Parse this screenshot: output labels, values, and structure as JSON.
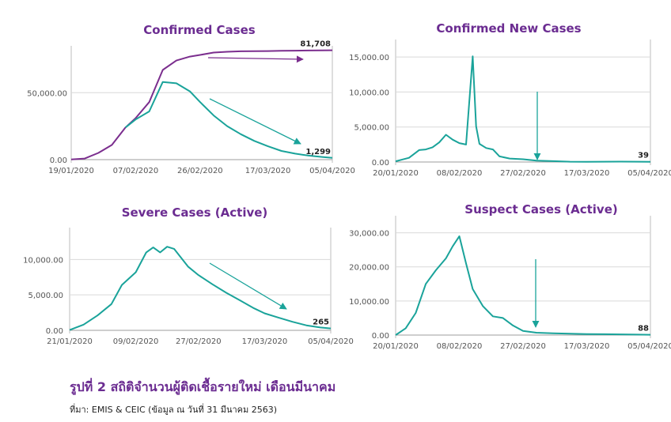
{
  "colors": {
    "purple": "#7b2e8e",
    "teal": "#1aa39a",
    "title": "#6b2c91",
    "axis": "#555555",
    "grid": "#d9d9d9"
  },
  "chart_data": [
    {
      "type": "line",
      "title": "Confirmed Cases",
      "x": [
        "19/01/2020",
        "23/01/2020",
        "27/01/2020",
        "31/01/2020",
        "04/02/2020",
        "07/02/2020",
        "11/02/2020",
        "15/02/2020",
        "19/02/2020",
        "23/02/2020",
        "26/02/2020",
        "01/03/2020",
        "05/03/2020",
        "09/03/2020",
        "13/03/2020",
        "17/03/2020",
        "21/03/2020",
        "25/03/2020",
        "29/03/2020",
        "02/04/2020",
        "05/04/2020"
      ],
      "series": [
        {
          "name": "",
          "color": "purple",
          "values": [
            100,
            800,
            5000,
            11000,
            24000,
            31000,
            43000,
            67000,
            74000,
            77000,
            78200,
            80000,
            80600,
            80900,
            81000,
            81100,
            81300,
            81400,
            81500,
            81600,
            81708
          ]
        },
        {
          "name": "",
          "color": "teal",
          "values": [
            null,
            null,
            null,
            null,
            24000,
            30000,
            36000,
            58000,
            57000,
            51000,
            43000,
            33000,
            25000,
            19000,
            14000,
            10000,
            6500,
            4500,
            3000,
            2000,
            1299
          ]
        }
      ],
      "yticks": [
        0,
        50000
      ],
      "ytick_labels": [
        "0.00",
        "50,000.00"
      ],
      "xtick_labels": [
        "19/01/2020",
        "07/02/2020",
        "26/02/2020",
        "17/03/2020",
        "05/04/2020"
      ],
      "xticks": [
        "19/01/2020",
        "07/02/2020",
        "26/02/2020",
        "17/03/2020",
        "05/04/2020"
      ],
      "ylim": [
        0,
        85000
      ],
      "end_labels": [
        "81,708",
        "1,299"
      ],
      "grid": "horizontal"
    },
    {
      "type": "line",
      "title": "Confirmed New Cases",
      "x": [
        "20/01/2020",
        "24/01/2020",
        "27/01/2020",
        "29/01/2020",
        "31/01/2020",
        "02/02/2020",
        "04/02/2020",
        "06/02/2020",
        "08/02/2020",
        "10/02/2020",
        "12/02/2020",
        "13/02/2020",
        "14/02/2020",
        "16/02/2020",
        "18/02/2020",
        "20/02/2020",
        "23/02/2020",
        "27/02/2020",
        "02/03/2020",
        "07/03/2020",
        "12/03/2020",
        "17/03/2020",
        "22/03/2020",
        "27/03/2020",
        "01/04/2020",
        "05/04/2020"
      ],
      "series": [
        {
          "name": "",
          "color": "teal",
          "values": [
            100,
            600,
            1700,
            1800,
            2100,
            2800,
            3900,
            3200,
            2700,
            2500,
            15100,
            5100,
            2600,
            2000,
            1800,
            800,
            500,
            400,
            200,
            120,
            40,
            30,
            50,
            60,
            50,
            39
          ]
        }
      ],
      "yticks": [
        0,
        5000,
        10000,
        15000
      ],
      "ytick_labels": [
        "0.00",
        "5,000.00",
        "10,000.00",
        "15,000.00"
      ],
      "xtick_labels": [
        "20/01/2020",
        "08/02/2020",
        "27/02/2020",
        "17/03/2020",
        "05/04/2020"
      ],
      "xticks": [
        "20/01/2020",
        "08/02/2020",
        "27/02/2020",
        "17/03/2020",
        "05/04/2020"
      ],
      "ylim": [
        0,
        17500
      ],
      "end_labels": [
        "39"
      ],
      "grid": "horizontal"
    },
    {
      "type": "line",
      "title": "Severe Cases (Active)",
      "x": [
        "21/01/2020",
        "25/01/2020",
        "29/01/2020",
        "02/02/2020",
        "05/02/2020",
        "09/02/2020",
        "12/02/2020",
        "14/02/2020",
        "16/02/2020",
        "18/02/2020",
        "20/02/2020",
        "24/02/2020",
        "27/02/2020",
        "02/03/2020",
        "06/03/2020",
        "10/03/2020",
        "14/03/2020",
        "17/03/2020",
        "21/03/2020",
        "25/03/2020",
        "29/03/2020",
        "02/04/2020",
        "05/04/2020"
      ],
      "series": [
        {
          "name": "",
          "color": "teal",
          "values": [
            50,
            800,
            2100,
            3700,
            6400,
            8200,
            11000,
            11700,
            11000,
            11800,
            11500,
            9000,
            7800,
            6500,
            5300,
            4200,
            3100,
            2400,
            1800,
            1200,
            700,
            400,
            265
          ]
        }
      ],
      "yticks": [
        0,
        5000,
        10000
      ],
      "ytick_labels": [
        "0.00",
        "5,000.00",
        "10,000.00"
      ],
      "xtick_labels": [
        "21/01/2020",
        "09/02/2020",
        "27/02/2020",
        "17/03/2020",
        "05/04/2020"
      ],
      "xticks": [
        "21/01/2020",
        "09/02/2020",
        "27/02/2020",
        "17/03/2020",
        "05/04/2020"
      ],
      "ylim": [
        0,
        14500
      ],
      "end_labels": [
        "265"
      ],
      "grid": "horizontal"
    },
    {
      "type": "line",
      "title": "Suspect Cases (Active)",
      "x": [
        "20/01/2020",
        "23/01/2020",
        "26/01/2020",
        "29/01/2020",
        "01/02/2020",
        "04/02/2020",
        "06/02/2020",
        "08/02/2020",
        "10/02/2020",
        "12/02/2020",
        "15/02/2020",
        "18/02/2020",
        "21/02/2020",
        "24/02/2020",
        "27/02/2020",
        "02/03/2020",
        "07/03/2020",
        "12/03/2020",
        "17/03/2020",
        "22/03/2020",
        "27/03/2020",
        "01/04/2020",
        "05/04/2020"
      ],
      "series": [
        {
          "name": "",
          "color": "teal",
          "values": [
            0,
            2000,
            6500,
            15000,
            19000,
            22500,
            26000,
            29000,
            21000,
            13500,
            8500,
            5500,
            5000,
            2800,
            1200,
            700,
            500,
            400,
            300,
            250,
            200,
            150,
            88
          ]
        }
      ],
      "yticks": [
        0,
        10000,
        20000,
        30000
      ],
      "ytick_labels": [
        "0.00",
        "10,000.00",
        "20,000.00",
        "30,000.00"
      ],
      "xtick_labels": [
        "20/01/2020",
        "08/02/2020",
        "27/02/2020",
        "17/03/2020",
        "05/04/2020"
      ],
      "xticks": [
        "20/01/2020",
        "08/02/2020",
        "27/02/2020",
        "17/03/2020",
        "05/04/2020"
      ],
      "ylim": [
        0,
        35000
      ],
      "end_labels": [
        "88"
      ],
      "grid": "horizontal"
    }
  ],
  "caption": {
    "title": "รูปที่ 2 สถิติจำนวนผู้ติดเชื้อรายใหม่ เดือนมีนาคม",
    "source": "ที่มา: EMIS & CEIC (ข้อมูล ณ วันที่ 31 มีนาคม 2563)"
  }
}
